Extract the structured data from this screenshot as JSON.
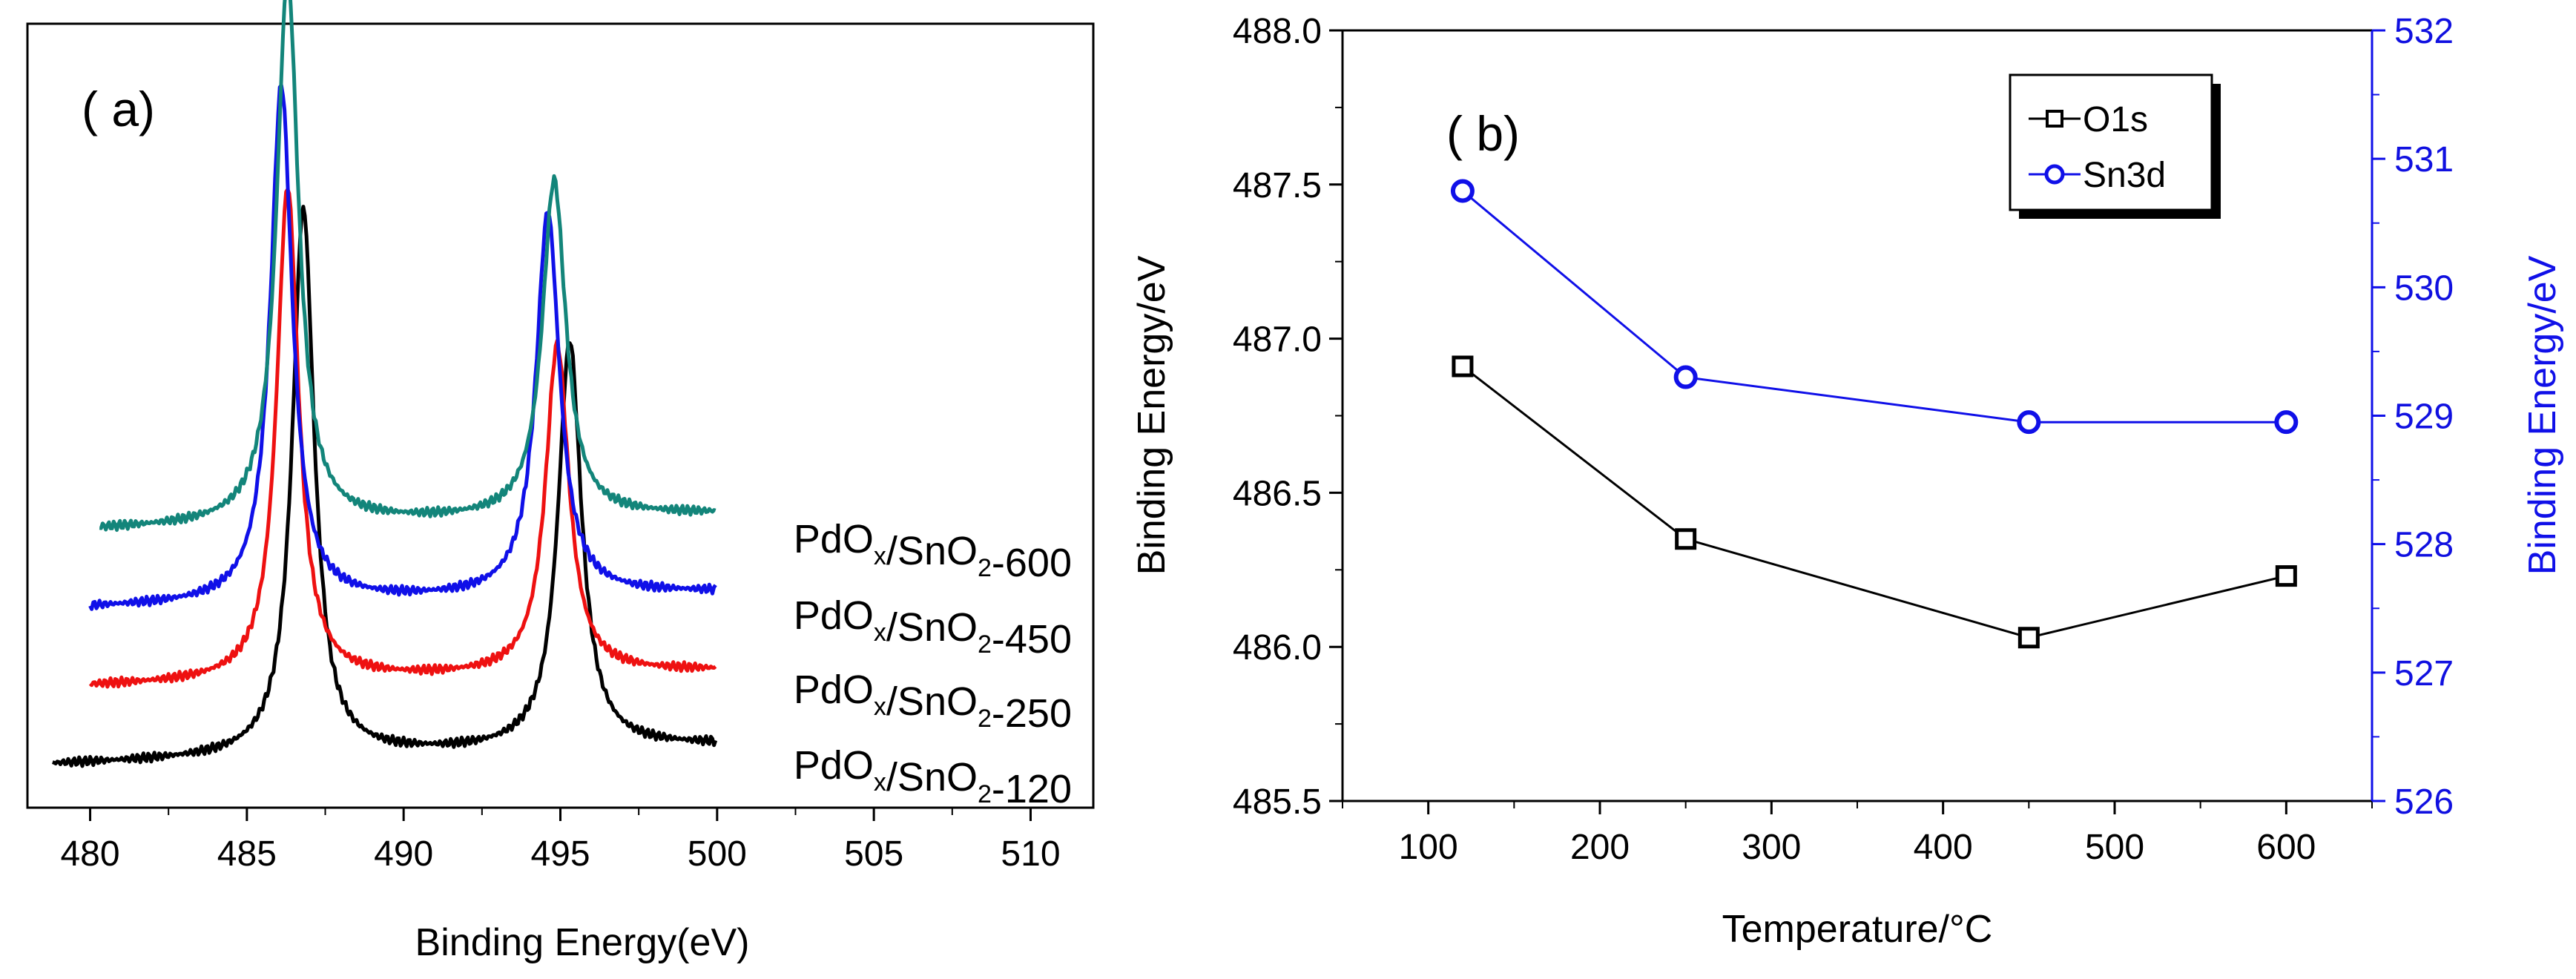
{
  "chart_data": [
    {
      "type": "line",
      "panel_label": "( a)",
      "xlabel": "Binding Energy(eV)",
      "ylabel": "",
      "xlim": [
        478,
        512
      ],
      "xticks": [
        "480",
        "485",
        "490",
        "495",
        "500",
        "505",
        "510"
      ],
      "y_ticks_shown": false,
      "series": [
        {
          "name": "PdOx/SnO2-120",
          "label_main": "PdO",
          "label_x": "x",
          "label_mid": "/SnO",
          "label_2": "2",
          "label_tail": "-120",
          "color": "#000000",
          "peak1": 486.8,
          "peak2": 495.3,
          "amp1": 0.7,
          "amp2": 0.52,
          "baseline_low": 0.055,
          "baseline_high": 0.08,
          "xstart": 478.8
        },
        {
          "name": "PdOx/SnO2-250",
          "label_main": "PdO",
          "label_x": "x",
          "label_mid": "/SnO",
          "label_2": "2",
          "label_tail": "-250",
          "color": "#ee1111",
          "peak1": 486.3,
          "peak2": 494.9,
          "amp1": 0.63,
          "amp2": 0.42,
          "baseline_low": 0.155,
          "baseline_high": 0.175,
          "xstart": 480.0
        },
        {
          "name": "PdOx/SnO2-450",
          "label_main": "PdO",
          "label_x": "x",
          "label_mid": "/SnO",
          "label_2": "2",
          "label_tail": "-450",
          "color": "#1010e8",
          "peak1": 486.1,
          "peak2": 494.6,
          "amp1": 0.66,
          "amp2": 0.49,
          "baseline_low": 0.255,
          "baseline_high": 0.275,
          "xstart": 480.0
        },
        {
          "name": "PdOx/SnO2-600",
          "label_main": "PdO",
          "label_x": "x",
          "label_mid": "/SnO",
          "label_2": "2",
          "label_tail": "-600",
          "color": "#13857a",
          "peak1": 486.3,
          "peak2": 494.8,
          "amp1": 0.7,
          "amp2": 0.43,
          "baseline_low": 0.355,
          "baseline_high": 0.375,
          "xstart": 480.3
        }
      ]
    },
    {
      "type": "line",
      "panel_label": "( b)",
      "xlabel": "Temperature/°C",
      "ylabel": "Binding Energy/eV",
      "ylabel_right": "Binding Energy/eV",
      "xlim": [
        50,
        650
      ],
      "xticks": [
        "100",
        "200",
        "300",
        "400",
        "500",
        "600"
      ],
      "ylim": [
        485.5,
        488.0
      ],
      "yticks": [
        "485.5",
        "486.0",
        "486.5",
        "487.0",
        "487.5",
        "488.0"
      ],
      "ylim_right": [
        526,
        532
      ],
      "yticks_right": [
        "526",
        "527",
        "528",
        "529",
        "530",
        "531",
        "532"
      ],
      "x": [
        120,
        250,
        450,
        600
      ],
      "series": [
        {
          "name": "O1s",
          "axis": "left",
          "marker": "square",
          "color": "#000000",
          "values": [
            486.91,
            486.35,
            486.03,
            486.23
          ]
        },
        {
          "name": "Sn3d",
          "axis": "right",
          "marker": "circle",
          "color": "#1010e8",
          "values": [
            530.75,
            529.3,
            528.95,
            528.95
          ]
        }
      ],
      "legend": {
        "items": [
          "O1s",
          "Sn3d"
        ],
        "placement": "top-right"
      }
    }
  ]
}
